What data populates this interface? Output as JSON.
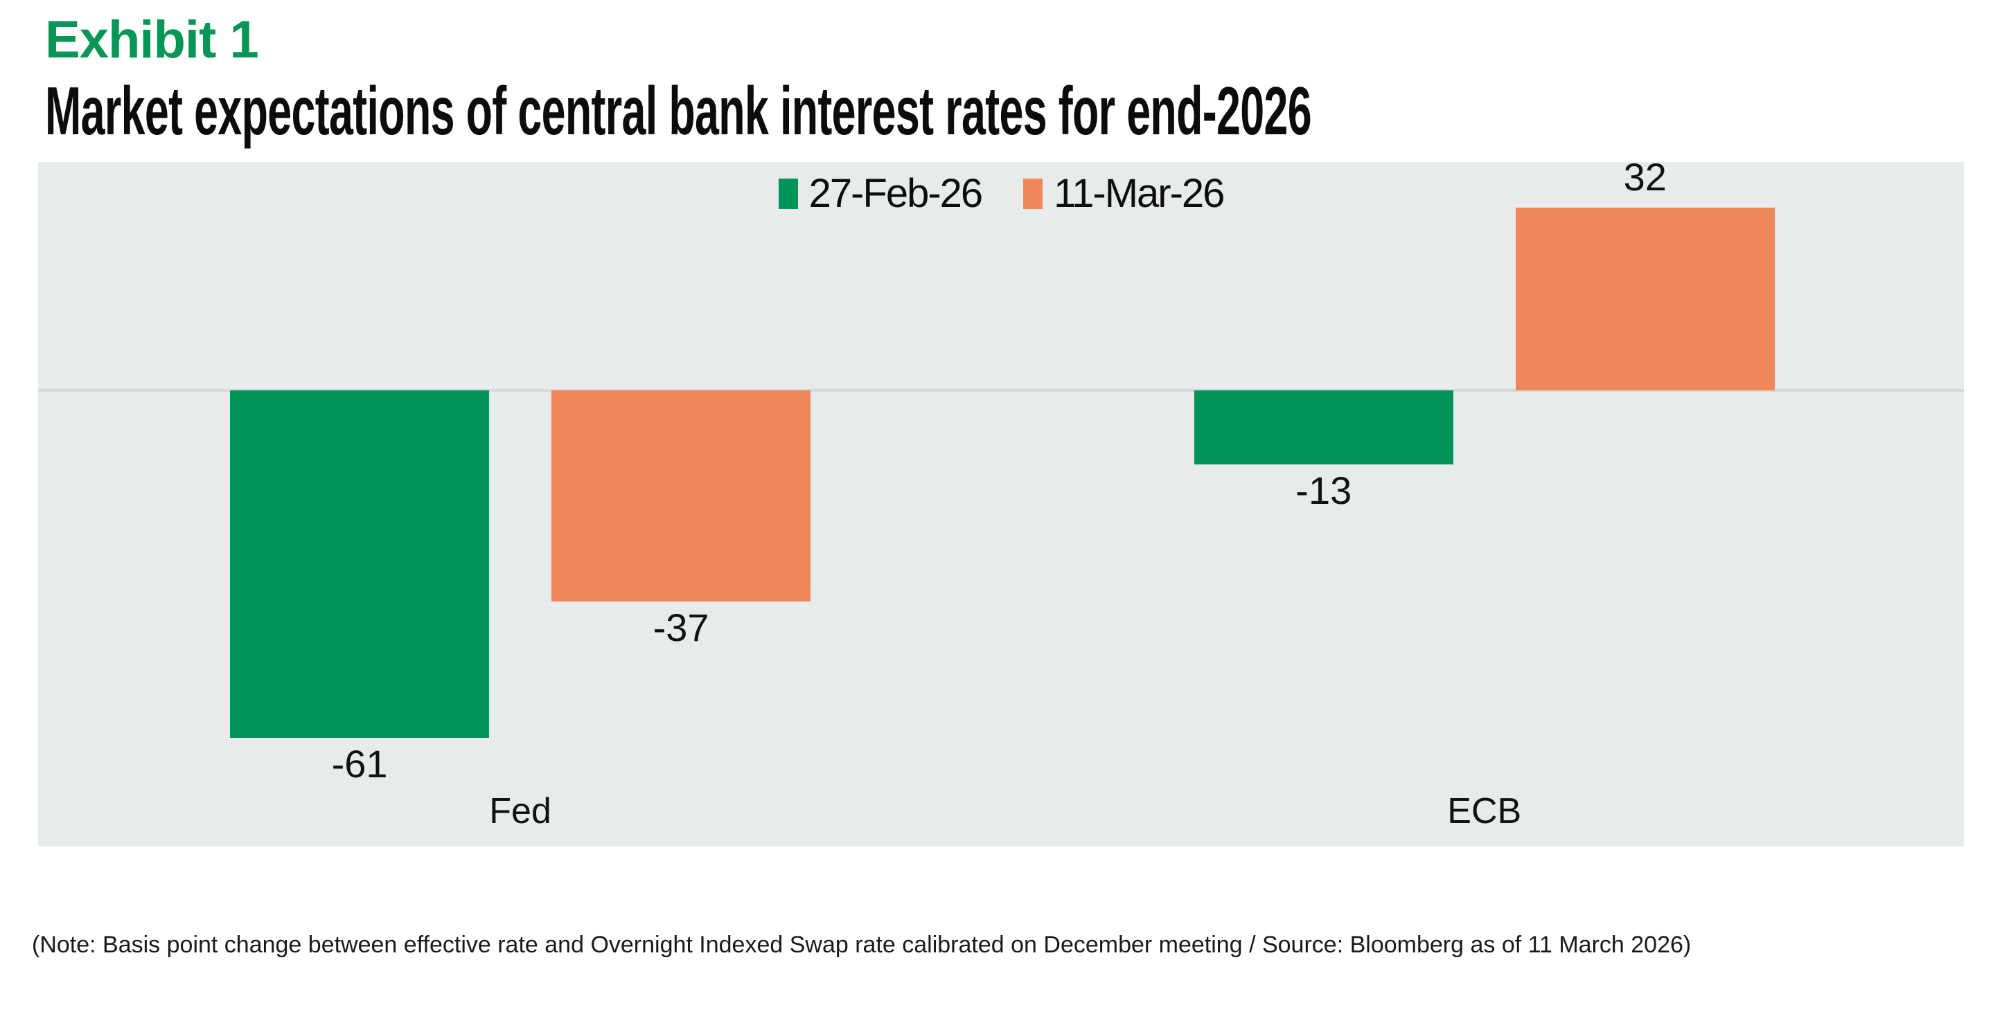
{
  "header": {
    "exhibit_label": "Exhibit 1",
    "title": "Market expectations of central bank interest rates for end-2026"
  },
  "chart_data": {
    "type": "bar",
    "title": "Market expectations of central bank interest rates for end-2026",
    "categories": [
      "Fed",
      "ECB"
    ],
    "series": [
      {
        "name": "27-Feb-26",
        "color": "#009458",
        "values": [
          -61,
          -13
        ]
      },
      {
        "name": "11-Mar-26",
        "color": "#EF875B",
        "values": [
          -37,
          32
        ]
      }
    ],
    "value_labels": {
      "fed_feb": "-61",
      "fed_mar": "-37",
      "ecb_feb": "-13",
      "ecb_mar": "32"
    },
    "xlabel": "",
    "ylabel": "",
    "unit": "basis points",
    "ylim": [
      -80,
      40
    ],
    "grid": false,
    "zero_line": true,
    "legend_position": "top-center",
    "plot_background": "#E8EBEB",
    "zero_line_color": "#D6DADA"
  },
  "footer": {
    "note": "(Note: Basis point change between effective rate and Overnight Indexed Swap rate calibrated on December meeting / Source: Bloomberg as of 11 March 2026)"
  },
  "colors": {
    "exhibit_green": "#089657",
    "bar_green": "#009458",
    "bar_orange": "#EF875B",
    "text_black": "#0D0D0D"
  }
}
